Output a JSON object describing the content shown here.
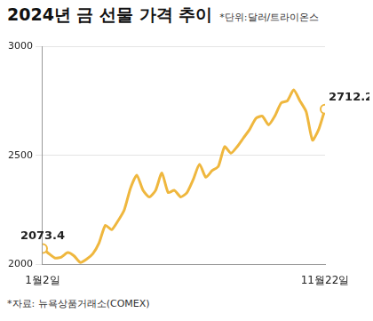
{
  "chart_data": {
    "type": "line",
    "title": "2024년 금 선물 가격 추이",
    "subtitle": "*단위:달러/트라이온스",
    "source": "*자료: 뉴욕상품거래소(COMEX)",
    "categories": [
      "1월2일",
      null,
      null,
      null,
      null,
      null,
      null,
      null,
      null,
      null,
      null,
      null,
      null,
      null,
      null,
      null,
      null,
      null,
      null,
      null,
      null,
      null,
      null,
      null,
      null,
      null,
      null,
      null,
      null,
      null,
      null,
      null,
      null,
      null,
      null,
      null,
      null,
      null,
      null,
      null,
      null,
      null,
      null,
      null,
      null,
      "11월22일"
    ],
    "values": [
      2073.4,
      2050,
      2030,
      2035,
      2055,
      2040,
      2010,
      2025,
      2050,
      2100,
      2180,
      2160,
      2200,
      2250,
      2350,
      2410,
      2340,
      2310,
      2340,
      2420,
      2330,
      2340,
      2310,
      2330,
      2390,
      2460,
      2400,
      2430,
      2450,
      2540,
      2510,
      2540,
      2580,
      2620,
      2670,
      2680,
      2640,
      2680,
      2740,
      2750,
      2800,
      2750,
      2700,
      2570,
      2620,
      2712.2
    ],
    "color": "#efb73e",
    "marker": "circle",
    "annotations": [
      {
        "x": "1월2일",
        "text": "2073.4"
      },
      {
        "x": "11월22일",
        "text": "2712.2"
      }
    ],
    "ylim": [
      2000,
      3000
    ],
    "yticks": [
      2000,
      2500,
      3000
    ],
    "grid": true
  }
}
